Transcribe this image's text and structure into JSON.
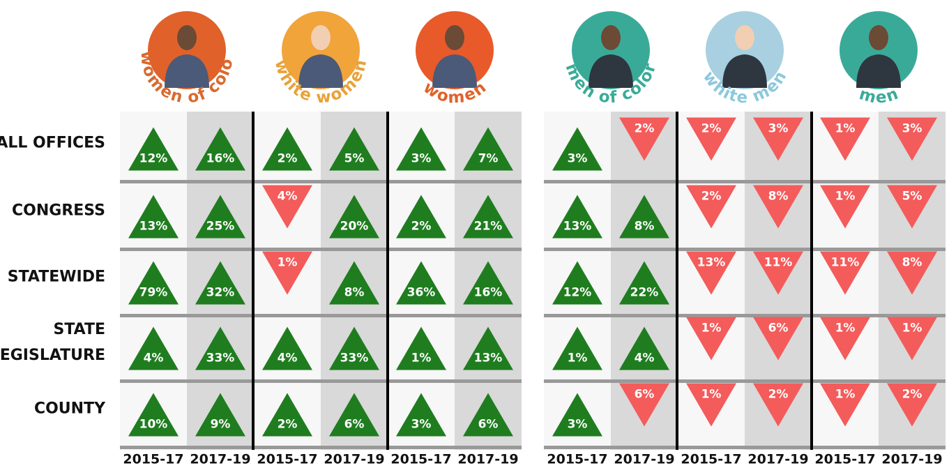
{
  "periods": [
    "2015-17",
    "2017-19"
  ],
  "groups": [
    {
      "name": "women of color",
      "circle": "#e0622a",
      "text_color": "#d9692e"
    },
    {
      "name": "white women",
      "circle": "#f0a43a",
      "text_color": "#e8a23a"
    },
    {
      "name": "women",
      "circle": "#e85a2a",
      "text_color": "#e0622a"
    },
    {
      "name": "men of color",
      "circle": "#3aaa98",
      "text_color": "#3aab98"
    },
    {
      "name": "white men",
      "circle": "#a8d0e0",
      "text_color": "#8cc8dc"
    },
    {
      "name": "men",
      "circle": "#3aaa98",
      "text_color": "#3aab98"
    }
  ],
  "rows": [
    {
      "label_lines": [
        "ALL OFFICES"
      ],
      "cells": [
        {
          "label": "12%",
          "trend": "up"
        },
        {
          "label": "16%",
          "trend": "up"
        },
        {
          "label": "2%",
          "trend": "up"
        },
        {
          "label": "5%",
          "trend": "up"
        },
        {
          "label": "3%",
          "trend": "up"
        },
        {
          "label": "7%",
          "trend": "up"
        },
        {
          "label": "3%",
          "trend": "up"
        },
        {
          "label": "2%",
          "trend": "down"
        },
        {
          "label": "2%",
          "trend": "down"
        },
        {
          "label": "3%",
          "trend": "down"
        },
        {
          "label": "1%",
          "trend": "down"
        },
        {
          "label": "3%",
          "trend": "down"
        }
      ]
    },
    {
      "label_lines": [
        "CONGRESS"
      ],
      "cells": [
        {
          "label": "13%",
          "trend": "up"
        },
        {
          "label": "25%",
          "trend": "up"
        },
        {
          "label": "4%",
          "trend": "down"
        },
        {
          "label": "20%",
          "trend": "up"
        },
        {
          "label": "2%",
          "trend": "up"
        },
        {
          "label": "21%",
          "trend": "up"
        },
        {
          "label": "13%",
          "trend": "up"
        },
        {
          "label": "8%",
          "trend": "up"
        },
        {
          "label": "2%",
          "trend": "down"
        },
        {
          "label": "8%",
          "trend": "down"
        },
        {
          "label": "1%",
          "trend": "down"
        },
        {
          "label": "5%",
          "trend": "down"
        }
      ]
    },
    {
      "label_lines": [
        "STATEWIDE"
      ],
      "cells": [
        {
          "label": "79%",
          "trend": "up"
        },
        {
          "label": "32%",
          "trend": "up"
        },
        {
          "label": "1%",
          "trend": "down"
        },
        {
          "label": "8%",
          "trend": "up"
        },
        {
          "label": "36%",
          "trend": "up"
        },
        {
          "label": "16%",
          "trend": "up"
        },
        {
          "label": "12%",
          "trend": "up"
        },
        {
          "label": "22%",
          "trend": "up"
        },
        {
          "label": "13%",
          "trend": "down"
        },
        {
          "label": "11%",
          "trend": "down"
        },
        {
          "label": "11%",
          "trend": "down"
        },
        {
          "label": "8%",
          "trend": "down"
        }
      ]
    },
    {
      "label_lines": [
        "STATE",
        "LEGISLATURE"
      ],
      "cells": [
        {
          "label": "4%",
          "trend": "up"
        },
        {
          "label": "33%",
          "trend": "up"
        },
        {
          "label": "4%",
          "trend": "up"
        },
        {
          "label": "33%",
          "trend": "up"
        },
        {
          "label": "1%",
          "trend": "up"
        },
        {
          "label": "13%",
          "trend": "up"
        },
        {
          "label": "1%",
          "trend": "up"
        },
        {
          "label": "4%",
          "trend": "up"
        },
        {
          "label": "1%",
          "trend": "down"
        },
        {
          "label": "6%",
          "trend": "down"
        },
        {
          "label": "1%",
          "trend": "down"
        },
        {
          "label": "1%",
          "trend": "down"
        }
      ]
    },
    {
      "label_lines": [
        "COUNTY"
      ],
      "cells": [
        {
          "label": "10%",
          "trend": "up"
        },
        {
          "label": "9%",
          "trend": "up"
        },
        {
          "label": "2%",
          "trend": "up"
        },
        {
          "label": "6%",
          "trend": "up"
        },
        {
          "label": "3%",
          "trend": "up"
        },
        {
          "label": "6%",
          "trend": "up"
        },
        {
          "label": "3%",
          "trend": "up"
        },
        {
          "label": "6%",
          "trend": "down"
        },
        {
          "label": "1%",
          "trend": "down"
        },
        {
          "label": "2%",
          "trend": "down"
        },
        {
          "label": "1%",
          "trend": "down"
        },
        {
          "label": "2%",
          "trend": "down"
        }
      ]
    }
  ]
}
